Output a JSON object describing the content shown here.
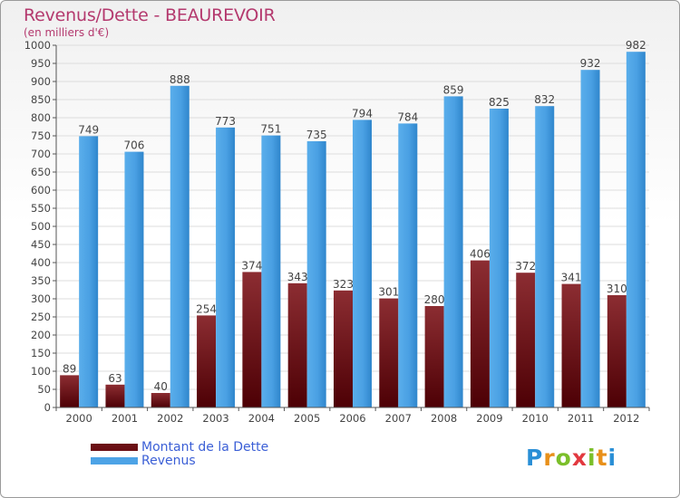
{
  "title": "Revenus/Dette - BEAUREVOIR",
  "subtitle": "(en milliers d'€)",
  "logo": {
    "chars": [
      "P",
      "r",
      "o",
      "x",
      "i",
      "t",
      "i"
    ],
    "colors": [
      "#2a8fd6",
      "#e8901a",
      "#7bbf2a",
      "#e2393f",
      "#7bbf2a",
      "#e8901a",
      "#2a8fd6"
    ]
  },
  "colors": {
    "dette": "#6b0f14",
    "revenus": "#4da3e6",
    "axis": "#555555",
    "grid": "#dddddd",
    "label": "#444444"
  },
  "chart_data": {
    "type": "bar",
    "title": "Revenus/Dette - BEAUREVOIR",
    "subtitle": "(en milliers d'€)",
    "categories": [
      "2000",
      "2001",
      "2002",
      "2003",
      "2004",
      "2005",
      "2006",
      "2007",
      "2008",
      "2009",
      "2010",
      "2011",
      "2012"
    ],
    "series": [
      {
        "name": "Montant de la Dette",
        "values": [
          89,
          63,
          40,
          254,
          374,
          343,
          323,
          301,
          280,
          406,
          372,
          341,
          310
        ]
      },
      {
        "name": "Revenus",
        "values": [
          749,
          706,
          888,
          773,
          751,
          735,
          794,
          784,
          859,
          825,
          832,
          932,
          982
        ]
      }
    ],
    "ylim": [
      0,
      1000
    ],
    "ytick_step": 50,
    "grid": true,
    "legend": "bottom-left"
  }
}
